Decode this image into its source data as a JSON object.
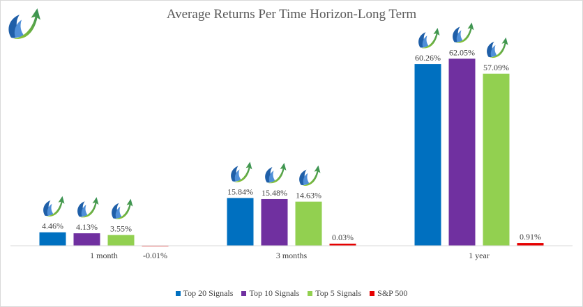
{
  "chart_data": {
    "type": "bar",
    "title": "Average Returns Per Time Horizon-Long Term",
    "categories": [
      "1 month",
      "3 months",
      "1 year"
    ],
    "series": [
      {
        "name": "Top 20 Signals",
        "color": "#0070C0",
        "values": [
          4.46,
          15.84,
          60.26
        ],
        "labels": [
          "4.46%",
          "15.84%",
          "60.26%"
        ]
      },
      {
        "name": "Top 10 Signals",
        "color": "#7030A0",
        "values": [
          4.13,
          15.48,
          62.05
        ],
        "labels": [
          "4.13%",
          "15.48%",
          "62.05%"
        ]
      },
      {
        "name": "Top 5 Signals",
        "color": "#92D050",
        "values": [
          3.55,
          14.63,
          57.09
        ],
        "labels": [
          "3.55%",
          "14.63%",
          "57.09%"
        ]
      },
      {
        "name": "S&P 500",
        "color": "#E60000",
        "values": [
          -0.01,
          0.03,
          0.91
        ],
        "labels": [
          "-0.01%",
          "0.03%",
          "0.91%"
        ]
      }
    ],
    "logo_marker": "trend-arrow-logo",
    "grid": false,
    "legend_position": "bottom"
  }
}
